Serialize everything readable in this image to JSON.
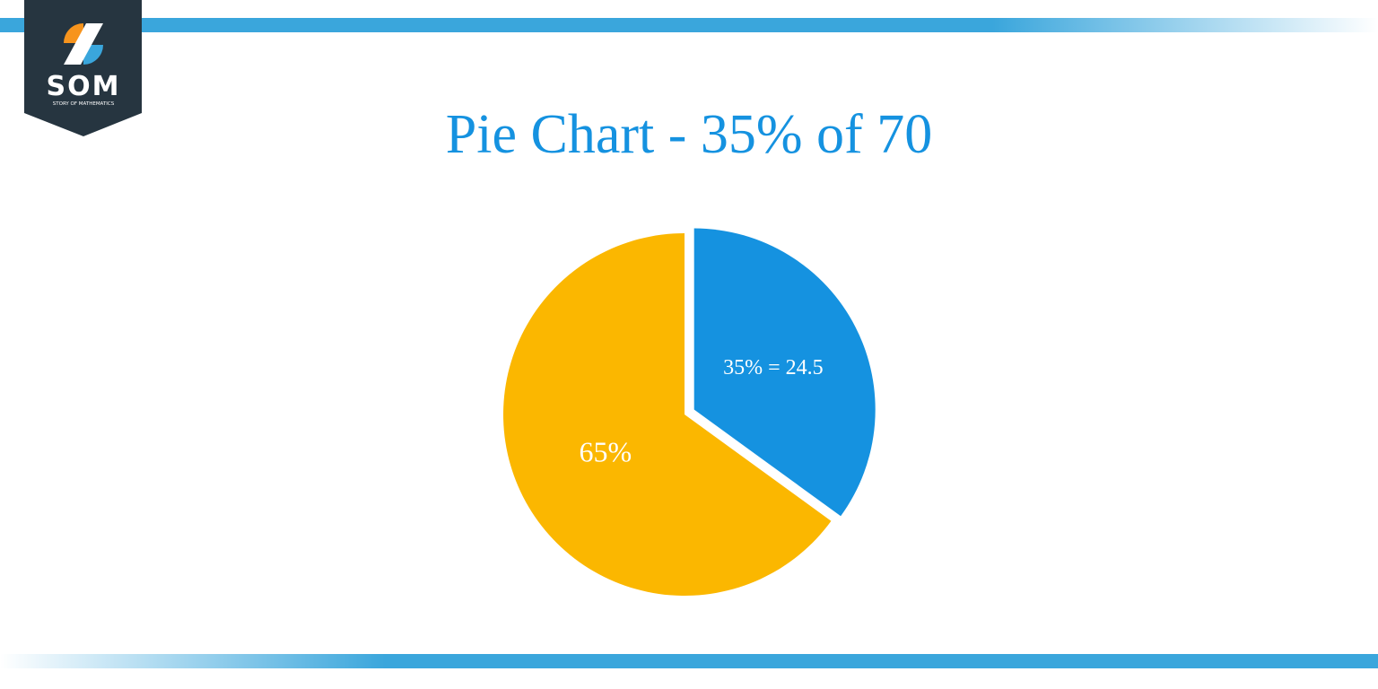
{
  "logo": {
    "text": "SOM",
    "subtitle": "STORY OF MATHEMATICS"
  },
  "chart_data": {
    "type": "pie",
    "title": "Pie Chart - 35% of 70",
    "values": [
      35,
      65
    ],
    "value_labels": [
      "35% = 24.5",
      "65%"
    ],
    "colors": [
      "#1592e0",
      "#fbb700"
    ]
  }
}
